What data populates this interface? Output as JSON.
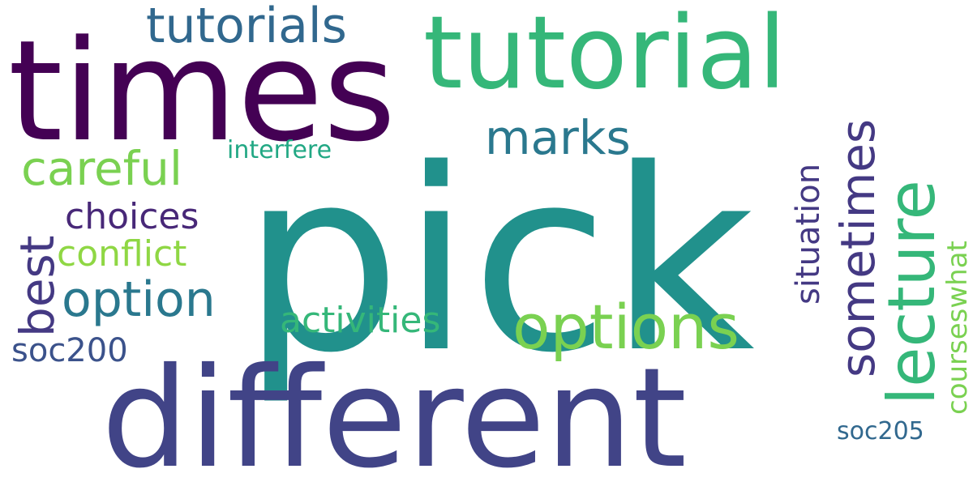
{
  "background": "#ffffff",
  "words": [
    {
      "id": "pick",
      "text": "pick",
      "color": "#21918c",
      "rotate": false
    },
    {
      "id": "times",
      "text": "times",
      "color": "#440154",
      "rotate": false
    },
    {
      "id": "tutorial",
      "text": "tutorial",
      "color": "#35b779",
      "rotate": false
    },
    {
      "id": "different",
      "text": "different",
      "color": "#414487",
      "rotate": false
    },
    {
      "id": "tutorials",
      "text": "tutorials",
      "color": "#31688e",
      "rotate": false
    },
    {
      "id": "options",
      "text": "options",
      "color": "#7ad151",
      "rotate": false
    },
    {
      "id": "lecture",
      "text": "lecture",
      "color": "#35b779",
      "rotate": true
    },
    {
      "id": "sometimes",
      "text": "sometimes",
      "color": "#443983",
      "rotate": true
    },
    {
      "id": "option",
      "text": "option",
      "color": "#2a788e",
      "rotate": false
    },
    {
      "id": "marks",
      "text": "marks",
      "color": "#2a788e",
      "rotate": false
    },
    {
      "id": "careful",
      "text": "careful",
      "color": "#7ad151",
      "rotate": false
    },
    {
      "id": "situation",
      "text": "situation",
      "color": "#443983",
      "rotate": true
    },
    {
      "id": "courseswhat",
      "text": "courseswhat",
      "color": "#7ad151",
      "rotate": true
    },
    {
      "id": "best",
      "text": "best",
      "color": "#443983",
      "rotate": true
    },
    {
      "id": "conflict",
      "text": "conflict",
      "color": "#8fd744",
      "rotate": false
    },
    {
      "id": "choices",
      "text": "choices",
      "color": "#482878",
      "rotate": false
    },
    {
      "id": "activities",
      "text": "activities",
      "color": "#35b779",
      "rotate": false
    },
    {
      "id": "interfere",
      "text": "interfere",
      "color": "#22a884",
      "rotate": false
    },
    {
      "id": "soc200",
      "text": "soc200",
      "color": "#3b528b",
      "rotate": false
    },
    {
      "id": "soc205",
      "text": "soc205",
      "color": "#31688e",
      "rotate": false
    }
  ]
}
